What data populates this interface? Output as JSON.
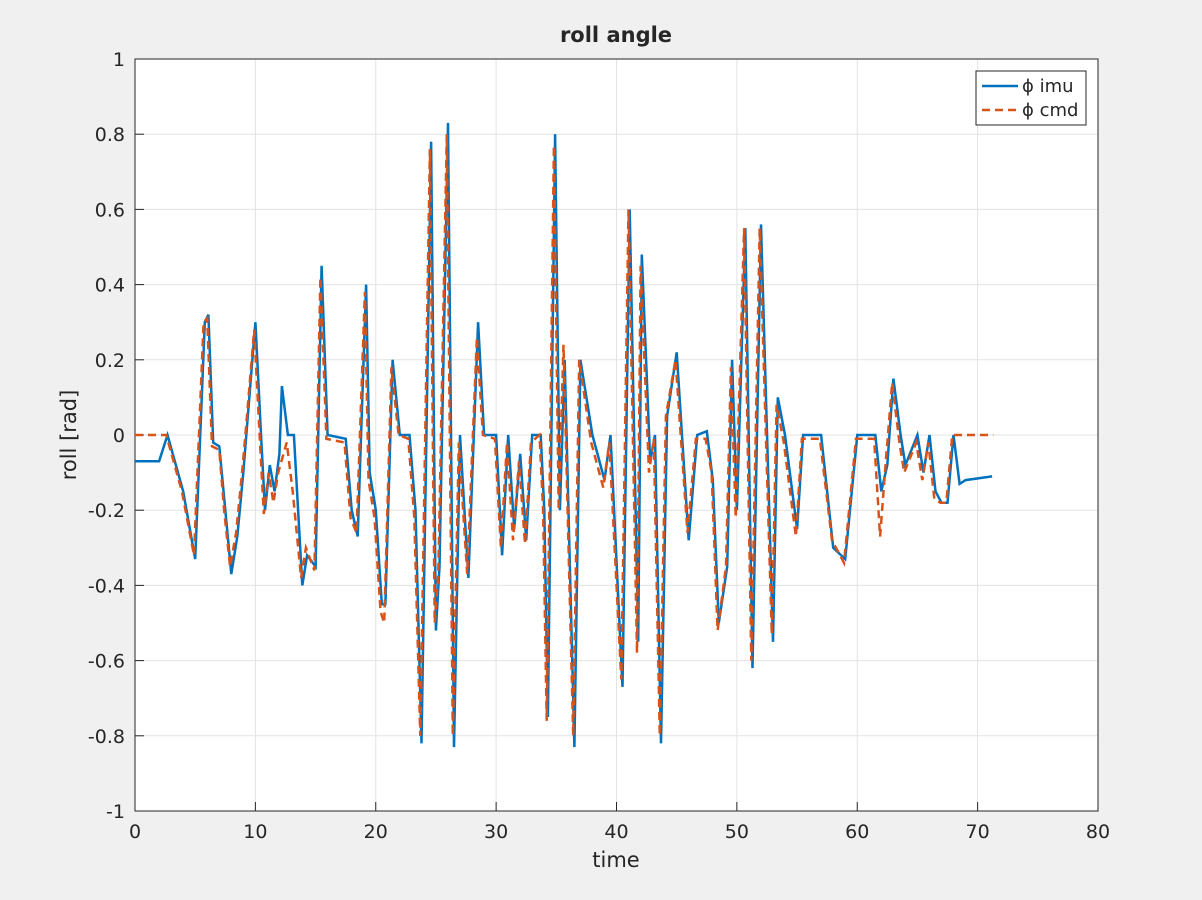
{
  "chart_data": {
    "type": "line",
    "title": "roll angle",
    "x_label": "time",
    "y_label": "roll [rad]",
    "xlim": [
      0,
      80
    ],
    "ylim": [
      -1,
      1
    ],
    "xticks": [
      0,
      10,
      20,
      30,
      40,
      50,
      60,
      70,
      80
    ],
    "yticks": [
      -1,
      -0.8,
      -0.6,
      -0.4,
      -0.2,
      0,
      0.2,
      0.4,
      0.6,
      0.8,
      1
    ],
    "grid": true,
    "legend": "northeast",
    "series": [
      {
        "name": "ϕ imu",
        "color": "#0072bd",
        "dash": false,
        "x": [
          0,
          2,
          2.7,
          4,
          5,
          5.8,
          6.1,
          6.5,
          7,
          7.5,
          8,
          8.5,
          9,
          9.3,
          10,
          10.5,
          10.8,
          11.2,
          11.6,
          12,
          12.2,
          12.7,
          13.2,
          13.9,
          14.3,
          15,
          15.5,
          16,
          17.5,
          18,
          18.5,
          19.2,
          19.5,
          20,
          20.5,
          20.8,
          21.4,
          22,
          22.8,
          23.3,
          23.8,
          24.6,
          25,
          25.3,
          26,
          26.5,
          27,
          27.7,
          28.5,
          29,
          30,
          30.5,
          31,
          31.5,
          32,
          32.5,
          33,
          33.7,
          34,
          34.3,
          34.9,
          35.3,
          35.7,
          36.5,
          37,
          38,
          39,
          39.5,
          40.5,
          41.1,
          41.8,
          42.1,
          42.8,
          43.2,
          43.7,
          44.2,
          45,
          46,
          46.7,
          47.5,
          48,
          48.5,
          49.2,
          49.6,
          50,
          50.7,
          51.3,
          52,
          53,
          53.4,
          54,
          55,
          55.5,
          57,
          58,
          59,
          60,
          61.5,
          62,
          62.5,
          63,
          63.6,
          64,
          65,
          65.5,
          66,
          66.5,
          67,
          67.5,
          68,
          68.5,
          69,
          71.2
        ],
        "values": [
          -0.07,
          -0.07,
          0,
          -0.15,
          -0.33,
          0.3,
          0.32,
          -0.02,
          -0.03,
          -0.2,
          -0.37,
          -0.27,
          -0.1,
          0.02,
          0.3,
          -0.02,
          -0.2,
          -0.08,
          -0.15,
          -0.05,
          0.13,
          0,
          0,
          -0.4,
          -0.32,
          -0.35,
          0.45,
          0,
          -0.01,
          -0.2,
          -0.27,
          0.4,
          -0.1,
          -0.2,
          -0.45,
          -0.45,
          0.2,
          0,
          0,
          -0.2,
          -0.82,
          0.78,
          -0.52,
          -0.35,
          0.83,
          -0.83,
          0,
          -0.38,
          0.3,
          0,
          0,
          -0.32,
          0,
          -0.25,
          -0.05,
          -0.28,
          0,
          0,
          -0.2,
          -0.75,
          0.8,
          -0.2,
          0.2,
          -0.83,
          0.2,
          0,
          -0.12,
          0,
          -0.67,
          0.6,
          -0.55,
          0.48,
          -0.07,
          0,
          -0.82,
          0.05,
          0.22,
          -0.28,
          0,
          0.01,
          -0.12,
          -0.5,
          -0.35,
          0.2,
          -0.2,
          0.55,
          -0.62,
          0.56,
          -0.55,
          0.1,
          0,
          -0.25,
          0,
          0,
          -0.3,
          -0.33,
          0,
          0,
          -0.15,
          -0.08,
          0.15,
          0,
          -0.08,
          0,
          -0.1,
          0,
          -0.15,
          -0.18,
          -0.18,
          0,
          -0.13,
          -0.12,
          -0.11
        ]
      },
      {
        "name": "ϕ cmd",
        "color": "#d95319",
        "dash": true,
        "x": [
          0,
          2.2,
          2.6,
          3.9,
          4.9,
          5.7,
          6,
          6.4,
          7,
          7.4,
          7.9,
          8.4,
          8.9,
          9.2,
          9.9,
          10.4,
          10.7,
          11.1,
          11.5,
          11.9,
          12.6,
          13.1,
          13.8,
          14.2,
          14.9,
          15.4,
          15.9,
          17.4,
          17.9,
          18.4,
          19.1,
          19.4,
          19.9,
          20.4,
          20.7,
          21.3,
          21.9,
          22.7,
          23.2,
          23.7,
          24.5,
          24.9,
          25.2,
          25.9,
          26.4,
          26.9,
          27.6,
          28.4,
          28.9,
          29.9,
          30.4,
          30.9,
          31.4,
          31.9,
          32.4,
          32.9,
          33.6,
          33.9,
          34.2,
          34.8,
          35.2,
          35.6,
          36.4,
          36.9,
          37.9,
          38.9,
          39.4,
          40.4,
          41,
          41.7,
          42,
          42.7,
          43.1,
          43.6,
          44.1,
          44.9,
          45.9,
          46.6,
          47.4,
          47.9,
          48.4,
          49.1,
          49.5,
          49.9,
          50.6,
          51.2,
          51.9,
          52.9,
          53.3,
          53.9,
          54.9,
          55.4,
          56.9,
          57.9,
          58.9,
          59.9,
          61.4,
          61.9,
          62.4,
          62.9,
          63.5,
          63.9,
          64.9,
          65.4,
          65.9,
          66.4,
          66.9,
          67.4,
          67.9,
          71.3
        ],
        "values": [
          0,
          0,
          0,
          -0.15,
          -0.32,
          0.3,
          0.31,
          -0.03,
          -0.04,
          -0.2,
          -0.35,
          -0.26,
          -0.1,
          0.01,
          0.28,
          -0.03,
          -0.21,
          -0.1,
          -0.18,
          -0.1,
          -0.02,
          -0.15,
          -0.38,
          -0.3,
          -0.36,
          0.42,
          -0.01,
          -0.02,
          -0.22,
          -0.26,
          0.38,
          -0.12,
          -0.22,
          -0.47,
          -0.5,
          0.18,
          0,
          -0.01,
          -0.22,
          -0.8,
          0.76,
          -0.5,
          -0.37,
          0.8,
          -0.8,
          -0.02,
          -0.37,
          0.26,
          0,
          -0.01,
          -0.3,
          -0.02,
          -0.28,
          -0.07,
          -0.29,
          -0.02,
          0,
          -0.2,
          -0.76,
          0.77,
          -0.2,
          0.24,
          -0.8,
          0.2,
          -0.02,
          -0.14,
          -0.02,
          -0.65,
          0.6,
          -0.58,
          0.45,
          -0.1,
          -0.01,
          -0.8,
          0.05,
          0.2,
          -0.26,
          -0.01,
          -0.01,
          -0.1,
          -0.52,
          -0.35,
          0.18,
          -0.22,
          0.55,
          -0.6,
          0.55,
          -0.53,
          0.08,
          -0.02,
          -0.27,
          -0.01,
          -0.01,
          -0.28,
          -0.34,
          -0.01,
          -0.01,
          -0.27,
          -0.06,
          0.14,
          -0.02,
          -0.1,
          -0.02,
          -0.12,
          -0.02,
          -0.17,
          -0.18,
          -0.18,
          0,
          0
        ]
      }
    ]
  }
}
